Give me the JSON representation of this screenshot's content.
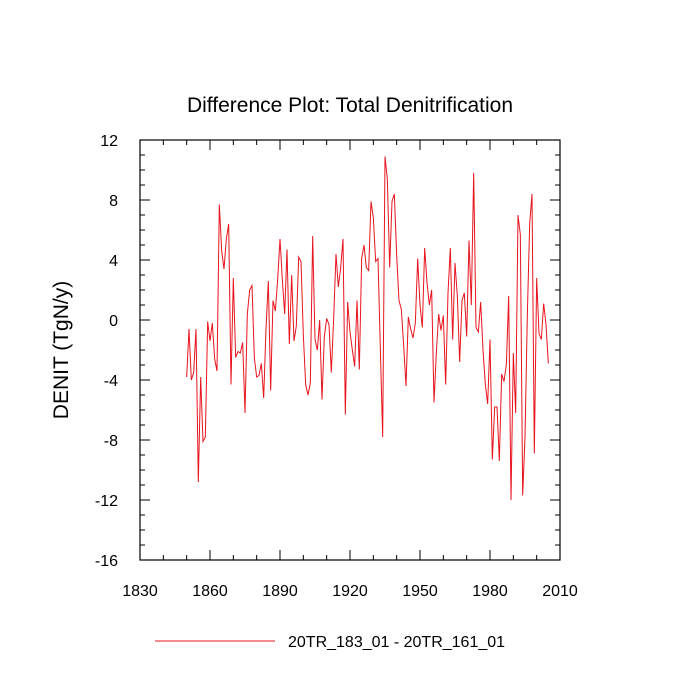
{
  "chart_data": {
    "type": "line",
    "title": "Difference Plot: Total Denitrification",
    "xlabel": "",
    "ylabel": "DENIT  (TgN/y)",
    "xlim": [
      1830,
      2010
    ],
    "ylim": [
      -16,
      12
    ],
    "xticks": [
      1830,
      1860,
      1890,
      1920,
      1950,
      1980,
      2010
    ],
    "yticks": [
      -16,
      -12,
      -8,
      -4,
      0,
      4,
      8,
      12
    ],
    "grid": false,
    "legend_position": "bottom-center",
    "series": [
      {
        "name": "20TR_183_01 - 20TR_161_01",
        "color": "#e8141e",
        "x": [
          1850,
          1851,
          1852,
          1853,
          1854,
          1855,
          1856,
          1857,
          1858,
          1859,
          1860,
          1861,
          1862,
          1863,
          1864,
          1865,
          1866,
          1867,
          1868,
          1869,
          1870,
          1871,
          1872,
          1873,
          1874,
          1875,
          1876,
          1877,
          1878,
          1879,
          1880,
          1881,
          1882,
          1883,
          1884,
          1885,
          1886,
          1887,
          1888,
          1889,
          1890,
          1891,
          1892,
          1893,
          1894,
          1895,
          1896,
          1897,
          1898,
          1899,
          1900,
          1901,
          1902,
          1903,
          1904,
          1905,
          1906,
          1907,
          1908,
          1909,
          1910,
          1911,
          1912,
          1913,
          1914,
          1915,
          1916,
          1917,
          1918,
          1919,
          1920,
          1921,
          1922,
          1923,
          1924,
          1925,
          1926,
          1927,
          1928,
          1929,
          1930,
          1931,
          1932,
          1933,
          1934,
          1935,
          1936,
          1937,
          1938,
          1939,
          1940,
          1941,
          1942,
          1943,
          1944,
          1945,
          1946,
          1947,
          1948,
          1949,
          1950,
          1951,
          1952,
          1953,
          1954,
          1955,
          1956,
          1957,
          1958,
          1959,
          1960,
          1961,
          1962,
          1963,
          1964,
          1965,
          1966,
          1967,
          1968,
          1969,
          1970,
          1971,
          1972,
          1973,
          1974,
          1975,
          1976,
          1977,
          1978,
          1979,
          1980,
          1981,
          1982,
          1983,
          1984,
          1985,
          1986,
          1987,
          1988,
          1989,
          1990,
          1991,
          1992,
          1993,
          1994,
          1995,
          1996,
          1997,
          1998,
          1999,
          2000,
          2001,
          2002,
          2003,
          2004,
          2005
        ],
        "values": [
          -3.8,
          -0.6,
          -4.0,
          -3.5,
          -0.6,
          -10.8,
          -3.8,
          -8.1,
          -7.8,
          -0.1,
          -1.4,
          -0.2,
          -2.6,
          -3.4,
          7.7,
          4.6,
          3.4,
          5.4,
          6.4,
          -4.3,
          2.8,
          -2.5,
          -2.1,
          -2.2,
          -1.5,
          -6.2,
          0.4,
          2.0,
          2.3,
          -2.5,
          -3.8,
          -3.7,
          -2.9,
          -5.2,
          -0.6,
          2.6,
          -4.7,
          1.3,
          0.6,
          2.7,
          5.4,
          2.7,
          0.4,
          4.7,
          -1.6,
          3.0,
          -1.4,
          -0.4,
          4.2,
          3.9,
          -1.0,
          -4.3,
          -5.0,
          -4.2,
          5.6,
          -1.3,
          -2.0,
          0.0,
          -5.3,
          -1.1,
          0.1,
          -0.3,
          -3.5,
          0.1,
          4.4,
          2.2,
          3.5,
          5.4,
          -6.3,
          1.2,
          -0.8,
          -2.0,
          -3.1,
          1.3,
          -3.3,
          4.1,
          5.0,
          3.5,
          3.3,
          7.9,
          6.8,
          3.9,
          4.1,
          -1.9,
          -7.8,
          10.9,
          9.4,
          3.5,
          7.9,
          8.4,
          4.3,
          1.3,
          0.7,
          -1.7,
          -4.4,
          0.2,
          -0.6,
          -1.2,
          -0.2,
          4.1,
          1.0,
          -0.5,
          4.8,
          2.5,
          1.0,
          2.0,
          -5.5,
          -2.2,
          0.4,
          -0.7,
          0.3,
          -4.3,
          1.8,
          4.8,
          -1.3,
          3.8,
          1.6,
          -2.8,
          1.3,
          1.8,
          -1.1,
          5.3,
          1.0,
          9.8,
          -0.5,
          -0.8,
          1.2,
          -2.0,
          -4.3,
          -5.6,
          -1.3,
          -9.3,
          -5.8,
          -5.8,
          -9.4,
          -3.6,
          -4.1,
          -3.0,
          1.6,
          -12.0,
          -2.2,
          -6.2,
          7.0,
          5.7,
          -11.7,
          -7.8,
          0.3,
          6.4,
          8.4,
          -8.9,
          2.8,
          -0.9,
          -1.3,
          1.1,
          -0.3,
          -2.9
        ]
      }
    ]
  }
}
